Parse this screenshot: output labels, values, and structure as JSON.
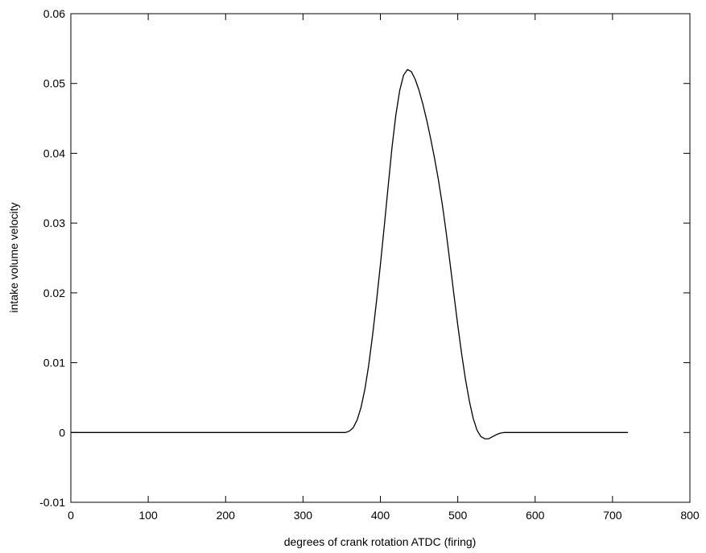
{
  "chart_data": {
    "type": "line",
    "title": "",
    "xlabel": "degrees of crank rotation ATDC (firing)",
    "ylabel": "intake volume velocity",
    "xlim": [
      0,
      800
    ],
    "ylim": [
      -0.01,
      0.06
    ],
    "xticks": [
      0,
      100,
      200,
      300,
      400,
      500,
      600,
      700,
      800
    ],
    "yticks": [
      -0.01,
      0,
      0.01,
      0.02,
      0.03,
      0.04,
      0.05,
      0.06
    ],
    "xtick_labels": [
      "0",
      "100",
      "200",
      "300",
      "400",
      "500",
      "600",
      "700",
      "800"
    ],
    "ytick_labels": [
      "-0.01",
      "0",
      "0.01",
      "0.02",
      "0.03",
      "0.04",
      "0.05",
      "0.06"
    ],
    "grid": false,
    "series": [
      {
        "color": "#000000",
        "x": [
          0,
          100,
          200,
          300,
          355,
          360,
          365,
          370,
          375,
          380,
          385,
          390,
          395,
          400,
          405,
          410,
          415,
          420,
          425,
          430,
          435,
          440,
          445,
          450,
          455,
          460,
          465,
          470,
          475,
          480,
          485,
          490,
          495,
          500,
          505,
          510,
          515,
          520,
          525,
          530,
          535,
          540,
          545,
          550,
          555,
          560,
          565,
          570,
          580,
          600,
          650,
          700,
          720
        ],
        "y": [
          0,
          0,
          0,
          0,
          0,
          0.0002,
          0.0007,
          0.0018,
          0.0036,
          0.0062,
          0.0097,
          0.014,
          0.0188,
          0.024,
          0.0295,
          0.0352,
          0.0408,
          0.0455,
          0.049,
          0.0512,
          0.052,
          0.0517,
          0.0506,
          0.049,
          0.047,
          0.0447,
          0.0421,
          0.0393,
          0.0362,
          0.0327,
          0.0287,
          0.0243,
          0.0198,
          0.0154,
          0.0113,
          0.0076,
          0.0045,
          0.002,
          0.0003,
          -0.0006,
          -0.0009,
          -0.0009,
          -0.0006,
          -0.0003,
          -0.0001,
          0,
          0,
          0,
          0,
          0,
          0,
          0,
          0
        ]
      }
    ]
  }
}
